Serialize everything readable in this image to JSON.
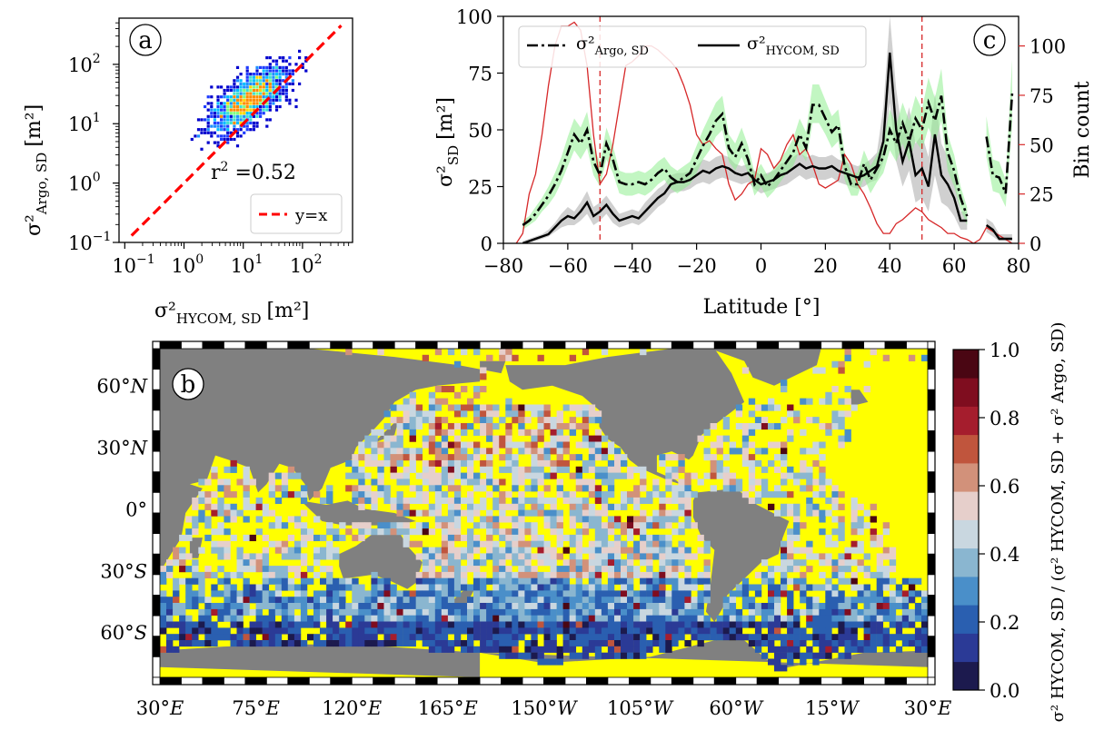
{
  "chart_data": [
    {
      "id": "a",
      "type": "scatter",
      "panel_label": "a",
      "xlabel": "σ²",
      "xlabel_sub": "HYCOM, SD",
      "xlabel_unit": "[m²]",
      "ylabel": "σ²",
      "ylabel_sub": "Argo, SD",
      "ylabel_unit": "[m²]",
      "xscale": "log",
      "yscale": "log",
      "xlim": [
        0.08,
        700
      ],
      "ylim": [
        0.1,
        600
      ],
      "xticks": [
        {
          "v": 0.1,
          "base": "10",
          "exp": "−1"
        },
        {
          "v": 1,
          "base": "10",
          "exp": "0"
        },
        {
          "v": 10,
          "base": "10",
          "exp": "1"
        },
        {
          "v": 100,
          "base": "10",
          "exp": "2"
        }
      ],
      "yticks": [
        {
          "v": 0.1,
          "base": "10",
          "exp": "−1"
        },
        {
          "v": 1,
          "base": "10",
          "exp": "0"
        },
        {
          "v": 10,
          "base": "10",
          "exp": "1"
        },
        {
          "v": 100,
          "base": "10",
          "exp": "2"
        }
      ],
      "annotation": {
        "prefix": "r",
        "exp": "2",
        "suffix": " =0.52"
      },
      "legend": {
        "position": "bottom-right",
        "entries": [
          {
            "label": "y=x",
            "color": "#ff0000",
            "style": "dashed"
          }
        ]
      },
      "reference_line": {
        "name": "y=x",
        "x": [
          0.13,
          450
        ],
        "y": [
          0.13,
          450
        ],
        "color": "#ff0000"
      },
      "density_clusters": [
        {
          "x": [
            0.3,
            400
          ],
          "y": [
            0.6,
            500
          ],
          "center": [
            12,
            25
          ],
          "note": "2-D histogram counts colored blue to red"
        }
      ]
    },
    {
      "id": "c",
      "type": "line",
      "panel_label": "c",
      "xlabel": "Latitude [°]",
      "ylabel": "σ²",
      "ylabel_sub": "SD",
      "ylabel_unit": "[m²]",
      "y2label": "Bin count",
      "xlim": [
        -80,
        80
      ],
      "ylim": [
        0,
        100
      ],
      "y2lim": [
        0,
        115
      ],
      "xticks": [
        -80,
        -60,
        -40,
        -20,
        0,
        20,
        40,
        60,
        80
      ],
      "yticks": [
        0,
        25,
        50,
        75,
        100
      ],
      "y2ticks": [
        0,
        25,
        50,
        75,
        100
      ],
      "vlines": [
        -50,
        50
      ],
      "legend": {
        "position": "top-left",
        "entries": [
          {
            "label": "σ²",
            "sub": "Argo, SD",
            "style": "dashdot",
            "color": "#000000"
          },
          {
            "label": "σ²",
            "sub": "HYCOM, SD",
            "style": "solid",
            "color": "#000000"
          }
        ]
      },
      "series": [
        {
          "name": "σ² Argo, SD",
          "style": "dashdot",
          "band_color": "#90ee90",
          "x": [
            -74,
            -72,
            -70,
            -68,
            -66,
            -64,
            -62,
            -60,
            -58,
            -56,
            -54,
            -52,
            -50,
            -48,
            -46,
            -44,
            -42,
            -40,
            -38,
            -36,
            -34,
            -32,
            -30,
            -28,
            -26,
            -24,
            -22,
            -20,
            -18,
            -16,
            -14,
            -12,
            -10,
            -8,
            -6,
            -4,
            -2,
            0,
            2,
            4,
            6,
            8,
            10,
            12,
            14,
            16,
            18,
            20,
            22,
            24,
            26,
            28,
            30,
            32,
            34,
            36,
            38,
            40,
            42,
            44,
            46,
            48,
            50,
            52,
            54,
            56,
            58,
            60,
            62,
            64,
            null,
            70,
            72,
            74,
            76,
            78
          ],
          "y": [
            8,
            10,
            13,
            17,
            21,
            26,
            32,
            40,
            48,
            44,
            50,
            36,
            30,
            44,
            37,
            27,
            26,
            26,
            27,
            26,
            28,
            31,
            33,
            29,
            27,
            29,
            31,
            37,
            43,
            48,
            54,
            57,
            42,
            38,
            44,
            37,
            26,
            30,
            25,
            28,
            32,
            36,
            40,
            48,
            42,
            61,
            61,
            55,
            49,
            52,
            34,
            26,
            26,
            35,
            28,
            33,
            38,
            50,
            44,
            53,
            45,
            55,
            50,
            62,
            54,
            65,
            40,
            32,
            20,
            12,
            null,
            47,
            30,
            29,
            22,
            66
          ],
          "band_lo": [
            6,
            8,
            10,
            14,
            17,
            21,
            27,
            34,
            41,
            37,
            42,
            30,
            25,
            37,
            31,
            22,
            21,
            21,
            22,
            21,
            23,
            26,
            28,
            24,
            22,
            24,
            26,
            31,
            37,
            41,
            47,
            50,
            36,
            32,
            38,
            31,
            21,
            25,
            20,
            23,
            27,
            31,
            34,
            41,
            36,
            53,
            53,
            48,
            42,
            45,
            28,
            21,
            21,
            29,
            22,
            27,
            31,
            41,
            36,
            44,
            36,
            45,
            41,
            51,
            44,
            54,
            32,
            25,
            15,
            8,
            null,
            38,
            23,
            22,
            16,
            52
          ],
          "band_hi": [
            10,
            12,
            16,
            20,
            25,
            31,
            38,
            47,
            55,
            51,
            58,
            42,
            36,
            51,
            43,
            32,
            31,
            31,
            32,
            31,
            33,
            36,
            38,
            34,
            32,
            34,
            36,
            43,
            50,
            56,
            62,
            65,
            48,
            44,
            51,
            43,
            31,
            35,
            30,
            33,
            37,
            41,
            46,
            55,
            49,
            70,
            70,
            63,
            56,
            59,
            40,
            31,
            31,
            41,
            34,
            39,
            45,
            59,
            52,
            62,
            54,
            65,
            59,
            73,
            64,
            77,
            48,
            39,
            25,
            16,
            null,
            56,
            37,
            36,
            28,
            81
          ]
        },
        {
          "name": "σ² HYCOM, SD",
          "style": "solid",
          "band_color": "#a9a9a9",
          "x": [
            -74,
            -72,
            -70,
            -68,
            -66,
            -64,
            -62,
            -60,
            -58,
            -56,
            -54,
            -52,
            -50,
            -48,
            -46,
            -44,
            -42,
            -40,
            -38,
            -36,
            -34,
            -32,
            -30,
            -28,
            -26,
            -24,
            -22,
            -20,
            -18,
            -16,
            -14,
            -12,
            -10,
            -8,
            -6,
            -4,
            -2,
            0,
            2,
            4,
            6,
            8,
            10,
            12,
            14,
            16,
            18,
            20,
            22,
            24,
            26,
            28,
            30,
            32,
            34,
            36,
            38,
            40,
            42,
            44,
            46,
            48,
            50,
            52,
            54,
            56,
            58,
            60,
            62,
            64,
            null,
            70,
            72,
            74,
            76,
            78
          ],
          "y": [
            0,
            1,
            2,
            3,
            4,
            7,
            10,
            12,
            11,
            14,
            18,
            12,
            14,
            17,
            13,
            10,
            11,
            12,
            11,
            14,
            17,
            20,
            22,
            26,
            27,
            27,
            28,
            30,
            32,
            31,
            33,
            34,
            33,
            31,
            30,
            31,
            28,
            26,
            27,
            28,
            30,
            31,
            33,
            35,
            33,
            34,
            33,
            33,
            34,
            32,
            31,
            30,
            29,
            30,
            32,
            34,
            45,
            84,
            50,
            36,
            45,
            30,
            33,
            25,
            48,
            30,
            26,
            20,
            10,
            10,
            null,
            8,
            6,
            2,
            2,
            2
          ],
          "band_lo": [
            0,
            0,
            1,
            2,
            3,
            5,
            7,
            8,
            8,
            10,
            13,
            8,
            10,
            13,
            9,
            7,
            8,
            9,
            8,
            10,
            13,
            16,
            18,
            22,
            23,
            23,
            24,
            26,
            27,
            26,
            28,
            29,
            28,
            27,
            26,
            27,
            24,
            22,
            23,
            24,
            25,
            26,
            28,
            30,
            28,
            29,
            28,
            28,
            29,
            27,
            26,
            25,
            24,
            25,
            27,
            28,
            36,
            62,
            36,
            25,
            32,
            18,
            20,
            14,
            30,
            18,
            16,
            12,
            6,
            6,
            null,
            5,
            3,
            1,
            1,
            1
          ],
          "band_hi": [
            1,
            2,
            3,
            4,
            6,
            9,
            13,
            16,
            14,
            18,
            23,
            16,
            18,
            21,
            17,
            13,
            14,
            15,
            14,
            18,
            21,
            24,
            26,
            30,
            31,
            31,
            32,
            34,
            37,
            36,
            38,
            39,
            38,
            35,
            34,
            35,
            32,
            30,
            31,
            32,
            35,
            36,
            38,
            40,
            38,
            39,
            38,
            38,
            39,
            37,
            36,
            35,
            34,
            35,
            37,
            40,
            60,
            100,
            68,
            48,
            60,
            44,
            48,
            38,
            66,
            44,
            38,
            30,
            14,
            14,
            null,
            11,
            9,
            4,
            4,
            4
          ]
        },
        {
          "name": "Bin count",
          "axis": "y2",
          "style": "solid",
          "color": "#d62728",
          "x": [
            -76,
            -74,
            -72,
            -70,
            -68,
            -66,
            -64,
            -62,
            -60,
            -58,
            -56,
            -54,
            -52,
            -50,
            -48,
            -46,
            -44,
            -42,
            -40,
            -38,
            -36,
            -34,
            -32,
            -30,
            -28,
            -26,
            -24,
            -22,
            -20,
            -18,
            -16,
            -14,
            -12,
            -10,
            -8,
            -6,
            -4,
            -2,
            0,
            2,
            4,
            6,
            8,
            10,
            12,
            14,
            16,
            18,
            20,
            22,
            24,
            26,
            28,
            30,
            32,
            34,
            36,
            38,
            40,
            42,
            44,
            46,
            48,
            50,
            52,
            54,
            56,
            58,
            60,
            62,
            64,
            66,
            68,
            70,
            72,
            74,
            76,
            78
          ],
          "y": [
            0,
            5,
            25,
            35,
            55,
            80,
            100,
            110,
            110,
            112,
            108,
            90,
            55,
            30,
            35,
            50,
            70,
            90,
            92,
            95,
            100,
            100,
            98,
            95,
            92,
            88,
            80,
            70,
            55,
            50,
            52,
            48,
            45,
            30,
            22,
            25,
            30,
            32,
            48,
            45,
            38,
            42,
            50,
            55,
            45,
            48,
            40,
            30,
            28,
            30,
            32,
            45,
            40,
            30,
            25,
            18,
            10,
            5,
            5,
            10,
            12,
            15,
            18,
            16,
            12,
            10,
            8,
            5,
            5,
            3,
            2,
            0,
            2,
            8,
            6,
            4,
            2,
            0
          ]
        }
      ]
    },
    {
      "id": "b",
      "type": "heatmap",
      "panel_label": "b",
      "colorbar_label": "σ² HYCOM, SD / (σ² HYCOM, SD + σ² Argo, SD)",
      "colorbar_range": [
        0.0,
        1.0
      ],
      "colorbar_ticks": [
        "0.0",
        "0.2",
        "0.4",
        "0.6",
        "0.8",
        "1.0"
      ],
      "colormap": [
        "#1c1a4e",
        "#2b3a96",
        "#2a5fb0",
        "#4a8fc9",
        "#8ab6d0",
        "#c9d7e0",
        "#e6cfcb",
        "#d2917a",
        "#c0553d",
        "#a51d2d",
        "#7f0d1f",
        "#4a0613"
      ],
      "land_color": "#808080",
      "no_data_color": "#ffff00",
      "xticks": [
        {
          "deg": "30",
          "h": "E"
        },
        {
          "deg": "75",
          "h": "E"
        },
        {
          "deg": "120",
          "h": "E"
        },
        {
          "deg": "165",
          "h": "E"
        },
        {
          "deg": "150",
          "h": "W"
        },
        {
          "deg": "105",
          "h": "W"
        },
        {
          "deg": "60",
          "h": "W"
        },
        {
          "deg": "15",
          "h": "W"
        },
        {
          "deg": "30",
          "h": "E"
        }
      ],
      "yticks": [
        {
          "deg": "60",
          "h": "N"
        },
        {
          "deg": "30",
          "h": "N"
        },
        {
          "deg": "0",
          "h": ""
        },
        {
          "deg": "30",
          "h": "S"
        },
        {
          "deg": "60",
          "h": "S"
        }
      ]
    }
  ]
}
